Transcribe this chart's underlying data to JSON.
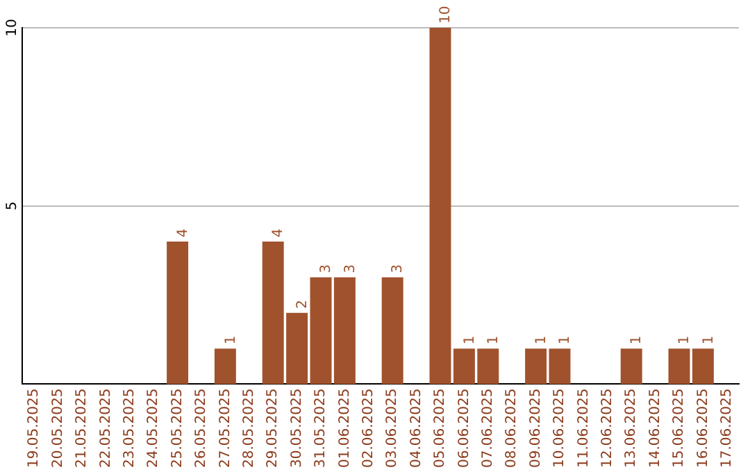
{
  "chart_data": {
    "type": "bar",
    "categories": [
      "19.05.2025",
      "20.05.2025",
      "21.05.2025",
      "22.05.2025",
      "23.05.2025",
      "24.05.2025",
      "25.05.2025",
      "26.05.2025",
      "27.05.2025",
      "28.05.2025",
      "29.05.2025",
      "30.05.2025",
      "31.05.2025",
      "01.06.2025",
      "02.06.2025",
      "03.06.2025",
      "04.06.2025",
      "05.06.2025",
      "06.06.2025",
      "07.06.2025",
      "08.06.2025",
      "09.06.2025",
      "10.06.2025",
      "11.06.2025",
      "12.06.2025",
      "13.06.2025",
      "14.06.2025",
      "15.06.2025",
      "16.06.2025",
      "17.06.2025"
    ],
    "values": [
      0,
      0,
      0,
      0,
      0,
      0,
      4,
      0,
      1,
      0,
      4,
      2,
      3,
      3,
      0,
      3,
      0,
      10,
      1,
      1,
      0,
      1,
      1,
      0,
      0,
      1,
      0,
      1,
      1,
      0
    ],
    "value_labels": [
      null,
      null,
      null,
      null,
      null,
      null,
      "4",
      null,
      "1",
      null,
      "4",
      "2",
      "3",
      "3",
      null,
      "3",
      null,
      "10",
      "1",
      "1",
      null,
      "1",
      "1",
      null,
      null,
      "1",
      null,
      "1",
      "1",
      null
    ],
    "color": "#a0522d",
    "ylim": [
      0,
      10
    ],
    "yticks": [
      5,
      10
    ],
    "grid": "y",
    "legend": false
  }
}
